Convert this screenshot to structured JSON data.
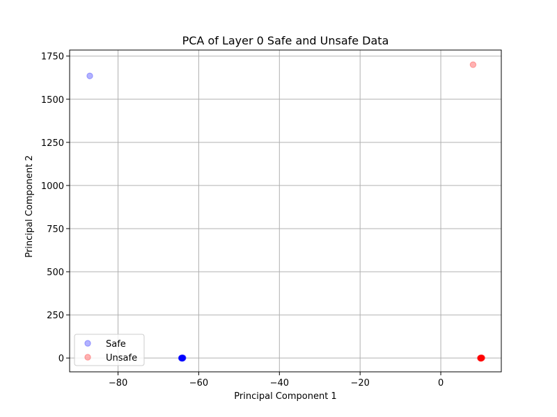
{
  "chart_data": {
    "type": "scatter",
    "title": "PCA of Layer 0 Safe and Unsafe Data",
    "xlabel": "Principal Component 1",
    "ylabel": "Principal Component 2",
    "xlim": [
      -92,
      15
    ],
    "ylim": [
      -80,
      1785
    ],
    "xticks": [
      -80,
      -60,
      -40,
      -20,
      0
    ],
    "xtick_labels": [
      "−80",
      "−60",
      "−40",
      "−20",
      "0"
    ],
    "yticks": [
      0,
      250,
      500,
      750,
      1000,
      1250,
      1500,
      1750
    ],
    "ytick_labels": [
      "0",
      "250",
      "500",
      "750",
      "1000",
      "1250",
      "1500",
      "1750"
    ],
    "grid": true,
    "legend_position": "lower-left",
    "series": [
      {
        "name": "Safe",
        "color": "#0000ff",
        "alpha": 0.3,
        "points": [
          {
            "x": -87,
            "y": 1635
          },
          {
            "x": -64.3,
            "y": 0
          },
          {
            "x": -64.2,
            "y": 0
          },
          {
            "x": -64.1,
            "y": 0
          },
          {
            "x": -64.0,
            "y": 0
          },
          {
            "x": -63.9,
            "y": 0
          },
          {
            "x": -64.2,
            "y": 2
          },
          {
            "x": -64.1,
            "y": -2
          },
          {
            "x": -64.0,
            "y": 1
          },
          {
            "x": -64.3,
            "y": -1
          },
          {
            "x": -63.9,
            "y": 2
          },
          {
            "x": -64.2,
            "y": -1
          },
          {
            "x": -64.0,
            "y": -2
          }
        ]
      },
      {
        "name": "Unsafe",
        "color": "#ff0000",
        "alpha": 0.3,
        "points": [
          {
            "x": 8,
            "y": 1700
          },
          {
            "x": 9.8,
            "y": 0
          },
          {
            "x": 9.9,
            "y": 0
          },
          {
            "x": 10.0,
            "y": 0
          },
          {
            "x": 10.1,
            "y": 0
          },
          {
            "x": 10.2,
            "y": 0
          },
          {
            "x": 9.9,
            "y": 2
          },
          {
            "x": 10.0,
            "y": -2
          },
          {
            "x": 10.1,
            "y": 1
          },
          {
            "x": 9.8,
            "y": -1
          },
          {
            "x": 10.2,
            "y": 2
          },
          {
            "x": 10.0,
            "y": -1
          },
          {
            "x": 9.9,
            "y": -2
          }
        ]
      }
    ]
  }
}
